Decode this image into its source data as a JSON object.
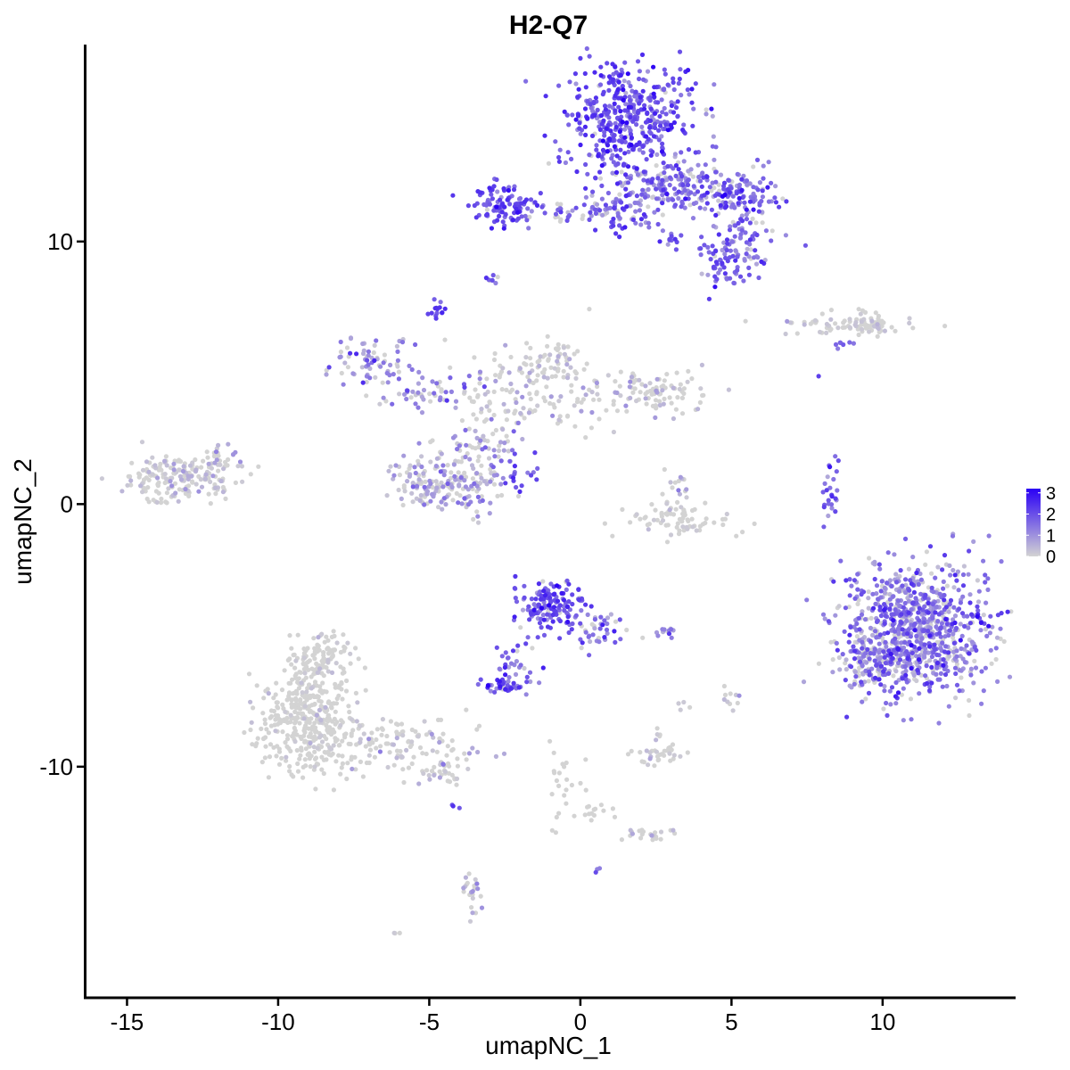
{
  "chart_data": {
    "type": "scatter",
    "title": "H2-Q7",
    "xlabel": "umapNC_1",
    "ylabel": "umapNC_2",
    "xlim": [
      -16.4,
      14.4
    ],
    "ylim": [
      -18.8,
      17.5
    ],
    "x_ticks": [
      {
        "value": -15,
        "label": "-15"
      },
      {
        "value": -10,
        "label": "-10"
      },
      {
        "value": -5,
        "label": "-5"
      },
      {
        "value": 0,
        "label": "0"
      },
      {
        "value": 5,
        "label": "5"
      },
      {
        "value": 10,
        "label": "10"
      }
    ],
    "y_ticks": [
      {
        "value": -10,
        "label": "-10"
      },
      {
        "value": 0,
        "label": "0"
      },
      {
        "value": 10,
        "label": "10"
      }
    ],
    "grid": false,
    "legend": {
      "placement": "right",
      "type": "colorbar",
      "min": 0,
      "max": 3.2,
      "low_color": "#d3d3d3",
      "high_color": "#2a00f5",
      "tick_values": [
        0,
        1,
        2,
        3
      ],
      "tick_labels": [
        "0",
        "1",
        "2",
        "3"
      ]
    },
    "clusters": [
      {
        "id": "c-top-main",
        "cx": 1.5,
        "cy": 14.7,
        "sx": 1.1,
        "sy": 1.1,
        "n": 460,
        "mean": 1.9,
        "spread": 0.55,
        "pos_frac": 0.97
      },
      {
        "id": "c-top-bridge",
        "cx": 3.3,
        "cy": 12.2,
        "sx": 1.1,
        "sy": 0.5,
        "n": 160,
        "mean": 1.5,
        "spread": 0.6,
        "pos_frac": 0.85
      },
      {
        "id": "c-top-right",
        "cx": 5.2,
        "cy": 11.8,
        "sx": 0.65,
        "sy": 0.45,
        "n": 110,
        "mean": 1.7,
        "spread": 0.6,
        "pos_frac": 0.95
      },
      {
        "id": "c-top-lower-right",
        "cx": 5.3,
        "cy": 9.8,
        "sx": 0.6,
        "sy": 0.6,
        "n": 90,
        "mean": 1.5,
        "spread": 0.55,
        "pos_frac": 0.9
      },
      {
        "id": "c-top-lower",
        "cx": 4.6,
        "cy": 9.0,
        "sx": 0.3,
        "sy": 0.35,
        "n": 30,
        "mean": 1.8,
        "spread": 0.5,
        "pos_frac": 0.95
      },
      {
        "id": "c-top-mid",
        "cx": 1.7,
        "cy": 11.3,
        "sx": 0.8,
        "sy": 0.5,
        "n": 90,
        "mean": 1.6,
        "spread": 0.6,
        "pos_frac": 0.9
      },
      {
        "id": "c-top-left",
        "cx": -2.6,
        "cy": 11.4,
        "sx": 0.55,
        "sy": 0.4,
        "n": 100,
        "mean": 2.0,
        "spread": 0.55,
        "pos_frac": 0.97
      },
      {
        "id": "c-top-leftstream",
        "cx": -0.7,
        "cy": 11.1,
        "sx": 0.9,
        "sy": 0.25,
        "n": 40,
        "mean": 1.6,
        "spread": 0.6,
        "pos_frac": 0.9
      },
      {
        "id": "c-small-left-a",
        "cx": -4.7,
        "cy": 7.4,
        "sx": 0.12,
        "sy": 0.18,
        "n": 14,
        "mean": 2.2,
        "spread": 0.4,
        "pos_frac": 1.0
      },
      {
        "id": "c-small-left-b",
        "cx": -2.9,
        "cy": 8.6,
        "sx": 0.12,
        "sy": 0.12,
        "n": 7,
        "mean": 1.6,
        "spread": 0.5,
        "pos_frac": 0.9
      },
      {
        "id": "c-small-top",
        "cx": 3.1,
        "cy": 10.1,
        "sx": 0.2,
        "sy": 0.15,
        "n": 12,
        "mean": 2.0,
        "spread": 0.5,
        "pos_frac": 1.0
      },
      {
        "id": "c-right-streak",
        "cx": 8.8,
        "cy": 6.8,
        "sx": 1.2,
        "sy": 0.18,
        "n": 60,
        "mean": 0.3,
        "spread": 0.3,
        "pos_frac": 0.3
      },
      {
        "id": "c-right-streak-end",
        "cx": 9.5,
        "cy": 6.85,
        "sx": 0.4,
        "sy": 0.2,
        "n": 40,
        "mean": 0.2,
        "spread": 0.3,
        "pos_frac": 0.2
      },
      {
        "id": "c-right-small",
        "cx": 8.8,
        "cy": 6.1,
        "sx": 0.2,
        "sy": 0.12,
        "n": 8,
        "mean": 1.5,
        "spread": 0.5,
        "pos_frac": 1.0
      },
      {
        "id": "c-mid-leftarm",
        "cx": -6.8,
        "cy": 5.5,
        "sx": 0.7,
        "sy": 0.4,
        "n": 70,
        "mean": 1.2,
        "spread": 0.6,
        "pos_frac": 0.85
      },
      {
        "id": "c-mid-arm2",
        "cx": -5.2,
        "cy": 4.3,
        "sx": 0.8,
        "sy": 0.35,
        "n": 55,
        "mean": 1.0,
        "spread": 0.6,
        "pos_frac": 0.7
      },
      {
        "id": "c-mid-center",
        "cx": -2.0,
        "cy": 4.0,
        "sx": 1.2,
        "sy": 0.8,
        "n": 110,
        "mean": 0.4,
        "spread": 0.4,
        "pos_frac": 0.35
      },
      {
        "id": "c-mid-top",
        "cx": -1.0,
        "cy": 5.4,
        "sx": 0.6,
        "sy": 0.5,
        "n": 60,
        "mean": 0.3,
        "spread": 0.3,
        "pos_frac": 0.3
      },
      {
        "id": "c-mid-right",
        "cx": 1.9,
        "cy": 4.2,
        "sx": 1.1,
        "sy": 0.45,
        "n": 110,
        "mean": 0.5,
        "spread": 0.4,
        "pos_frac": 0.4
      },
      {
        "id": "c-mid-bottomleft",
        "cx": -5.2,
        "cy": 0.9,
        "sx": 0.55,
        "sy": 0.55,
        "n": 90,
        "mean": 0.6,
        "spread": 0.5,
        "pos_frac": 0.55
      },
      {
        "id": "c-mid-bottom",
        "cx": -3.8,
        "cy": 0.8,
        "sx": 0.6,
        "sy": 0.6,
        "n": 100,
        "mean": 0.8,
        "spread": 0.55,
        "pos_frac": 0.6
      },
      {
        "id": "c-mid-stem",
        "cx": -3.2,
        "cy": 2.3,
        "sx": 0.6,
        "sy": 0.6,
        "n": 60,
        "mean": 0.7,
        "spread": 0.55,
        "pos_frac": 0.55
      },
      {
        "id": "c-mid-diag",
        "cx": -1.9,
        "cy": 1.2,
        "sx": 0.35,
        "sy": 0.3,
        "n": 18,
        "mean": 2.2,
        "spread": 0.5,
        "pos_frac": 1.0
      },
      {
        "id": "c-left-cluster",
        "cx": -13.5,
        "cy": 1.0,
        "sx": 0.8,
        "sy": 0.45,
        "n": 170,
        "mean": 0.3,
        "spread": 0.35,
        "pos_frac": 0.35
      },
      {
        "id": "c-left-cluster-tail",
        "cx": -12.0,
        "cy": 1.6,
        "sx": 0.6,
        "sy": 0.4,
        "n": 40,
        "mean": 0.4,
        "spread": 0.4,
        "pos_frac": 0.45
      },
      {
        "id": "c-center-arc",
        "cx": 3.2,
        "cy": -0.6,
        "sx": 0.9,
        "sy": 0.35,
        "n": 70,
        "mean": 0.2,
        "spread": 0.3,
        "pos_frac": 0.25
      },
      {
        "id": "c-center-arc-top",
        "cx": 3.2,
        "cy": 0.7,
        "sx": 0.3,
        "sy": 0.5,
        "n": 20,
        "mean": 0.4,
        "spread": 0.4,
        "pos_frac": 0.4
      },
      {
        "id": "c-right-thin",
        "cx": 8.3,
        "cy": 0.4,
        "sx": 0.15,
        "sy": 0.6,
        "n": 25,
        "mean": 1.6,
        "spread": 0.6,
        "pos_frac": 0.9
      },
      {
        "id": "c-right-big",
        "cx": 11.1,
        "cy": -4.7,
        "sx": 1.2,
        "sy": 1.2,
        "n": 900,
        "mean": 1.3,
        "spread": 0.65,
        "pos_frac": 0.85
      },
      {
        "id": "c-right-big-left",
        "cx": 9.4,
        "cy": -6.0,
        "sx": 0.45,
        "sy": 0.7,
        "n": 90,
        "mean": 1.2,
        "spread": 0.65,
        "pos_frac": 0.75
      },
      {
        "id": "c-center-low",
        "cx": -1.0,
        "cy": -3.9,
        "sx": 0.55,
        "sy": 0.5,
        "n": 150,
        "mean": 2.0,
        "spread": 0.55,
        "pos_frac": 0.95
      },
      {
        "id": "c-center-low-tail",
        "cx": 0.6,
        "cy": -4.8,
        "sx": 0.5,
        "sy": 0.35,
        "n": 40,
        "mean": 1.4,
        "spread": 0.6,
        "pos_frac": 0.85
      },
      {
        "id": "c-center-low-stream",
        "cx": -2.0,
        "cy": -6.2,
        "sx": 0.5,
        "sy": 0.5,
        "n": 30,
        "mean": 1.6,
        "spread": 0.6,
        "pos_frac": 0.9
      },
      {
        "id": "c-center-low-bottom",
        "cx": -2.5,
        "cy": -6.9,
        "sx": 0.3,
        "sy": 0.2,
        "n": 40,
        "mean": 1.8,
        "spread": 0.55,
        "pos_frac": 0.95
      },
      {
        "id": "c-small-mid",
        "cx": 2.8,
        "cy": -4.9,
        "sx": 0.18,
        "sy": 0.1,
        "n": 12,
        "mean": 1.4,
        "spread": 0.5,
        "pos_frac": 0.9
      },
      {
        "id": "c-lower-left",
        "cx": -9.0,
        "cy": -8.3,
        "sx": 0.8,
        "sy": 1.0,
        "n": 380,
        "mean": 0.1,
        "spread": 0.25,
        "pos_frac": 0.08
      },
      {
        "id": "c-lower-left-top",
        "cx": -8.6,
        "cy": -5.9,
        "sx": 0.6,
        "sy": 0.6,
        "n": 120,
        "mean": 0.1,
        "spread": 0.25,
        "pos_frac": 0.08
      },
      {
        "id": "c-lower-left-tail",
        "cx": -6.0,
        "cy": -9.2,
        "sx": 1.4,
        "sy": 0.5,
        "n": 120,
        "mean": 0.3,
        "spread": 0.35,
        "pos_frac": 0.25
      },
      {
        "id": "c-lower-left-end",
        "cx": -4.6,
        "cy": -10.2,
        "sx": 0.5,
        "sy": 0.25,
        "n": 35,
        "mean": 0.4,
        "spread": 0.4,
        "pos_frac": 0.35
      },
      {
        "id": "c-bottom-small-a",
        "cx": -3.6,
        "cy": -14.7,
        "sx": 0.2,
        "sy": 0.4,
        "n": 25,
        "mean": 0.6,
        "spread": 0.5,
        "pos_frac": 0.5
      },
      {
        "id": "c-bottom-small-b",
        "cx": 2.6,
        "cy": -9.5,
        "sx": 0.45,
        "sy": 0.2,
        "n": 35,
        "mean": 0.2,
        "spread": 0.3,
        "pos_frac": 0.25
      },
      {
        "id": "c-bottom-small-c",
        "cx": 2.2,
        "cy": -12.5,
        "sx": 0.5,
        "sy": 0.15,
        "n": 22,
        "mean": 0.2,
        "spread": 0.3,
        "pos_frac": 0.2
      },
      {
        "id": "c-bottom-stream",
        "cx": -0.5,
        "cy": -10.7,
        "sx": 0.35,
        "sy": 0.7,
        "n": 22,
        "mean": 0.1,
        "spread": 0.2,
        "pos_frac": 0.05
      },
      {
        "id": "c-bottom-stream2",
        "cx": 0.4,
        "cy": -11.7,
        "sx": 0.35,
        "sy": 0.3,
        "n": 14,
        "mean": 0.1,
        "spread": 0.2,
        "pos_frac": 0.05
      },
      {
        "id": "c-right-small-low",
        "cx": 5.0,
        "cy": -7.4,
        "sx": 0.12,
        "sy": 0.25,
        "n": 10,
        "mean": 0.3,
        "spread": 0.3,
        "pos_frac": 0.3
      },
      {
        "id": "c-tiny-a",
        "cx": 3.4,
        "cy": -7.7,
        "sx": 0.1,
        "sy": 0.1,
        "n": 4,
        "mean": 0.2,
        "spread": 0.3,
        "pos_frac": 0.25
      },
      {
        "id": "c-tiny-b",
        "cx": 2.6,
        "cy": -8.8,
        "sx": 0.12,
        "sy": 0.12,
        "n": 5,
        "mean": 0.3,
        "spread": 0.3,
        "pos_frac": 0.3
      },
      {
        "id": "c-tiny-c",
        "cx": 0.6,
        "cy": -13.9,
        "sx": 0.08,
        "sy": 0.08,
        "n": 3,
        "mean": 1.8,
        "spread": 0.4,
        "pos_frac": 1.0
      },
      {
        "id": "c-tiny-d",
        "cx": -6.1,
        "cy": -16.3,
        "sx": 0.08,
        "sy": 0.05,
        "n": 3,
        "mean": 0.1,
        "spread": 0.2,
        "pos_frac": 0.1
      },
      {
        "id": "c-tiny-e",
        "cx": -4.2,
        "cy": -11.5,
        "sx": 0.15,
        "sy": 0.05,
        "n": 3,
        "mean": 2.0,
        "spread": 0.4,
        "pos_frac": 1.0
      },
      {
        "id": "c-tiny-f",
        "cx": 7.9,
        "cy": 4.8,
        "sx": 0.05,
        "sy": 0.05,
        "n": 1,
        "mean": 2.0,
        "spread": 0.3,
        "pos_frac": 1.0
      }
    ]
  }
}
